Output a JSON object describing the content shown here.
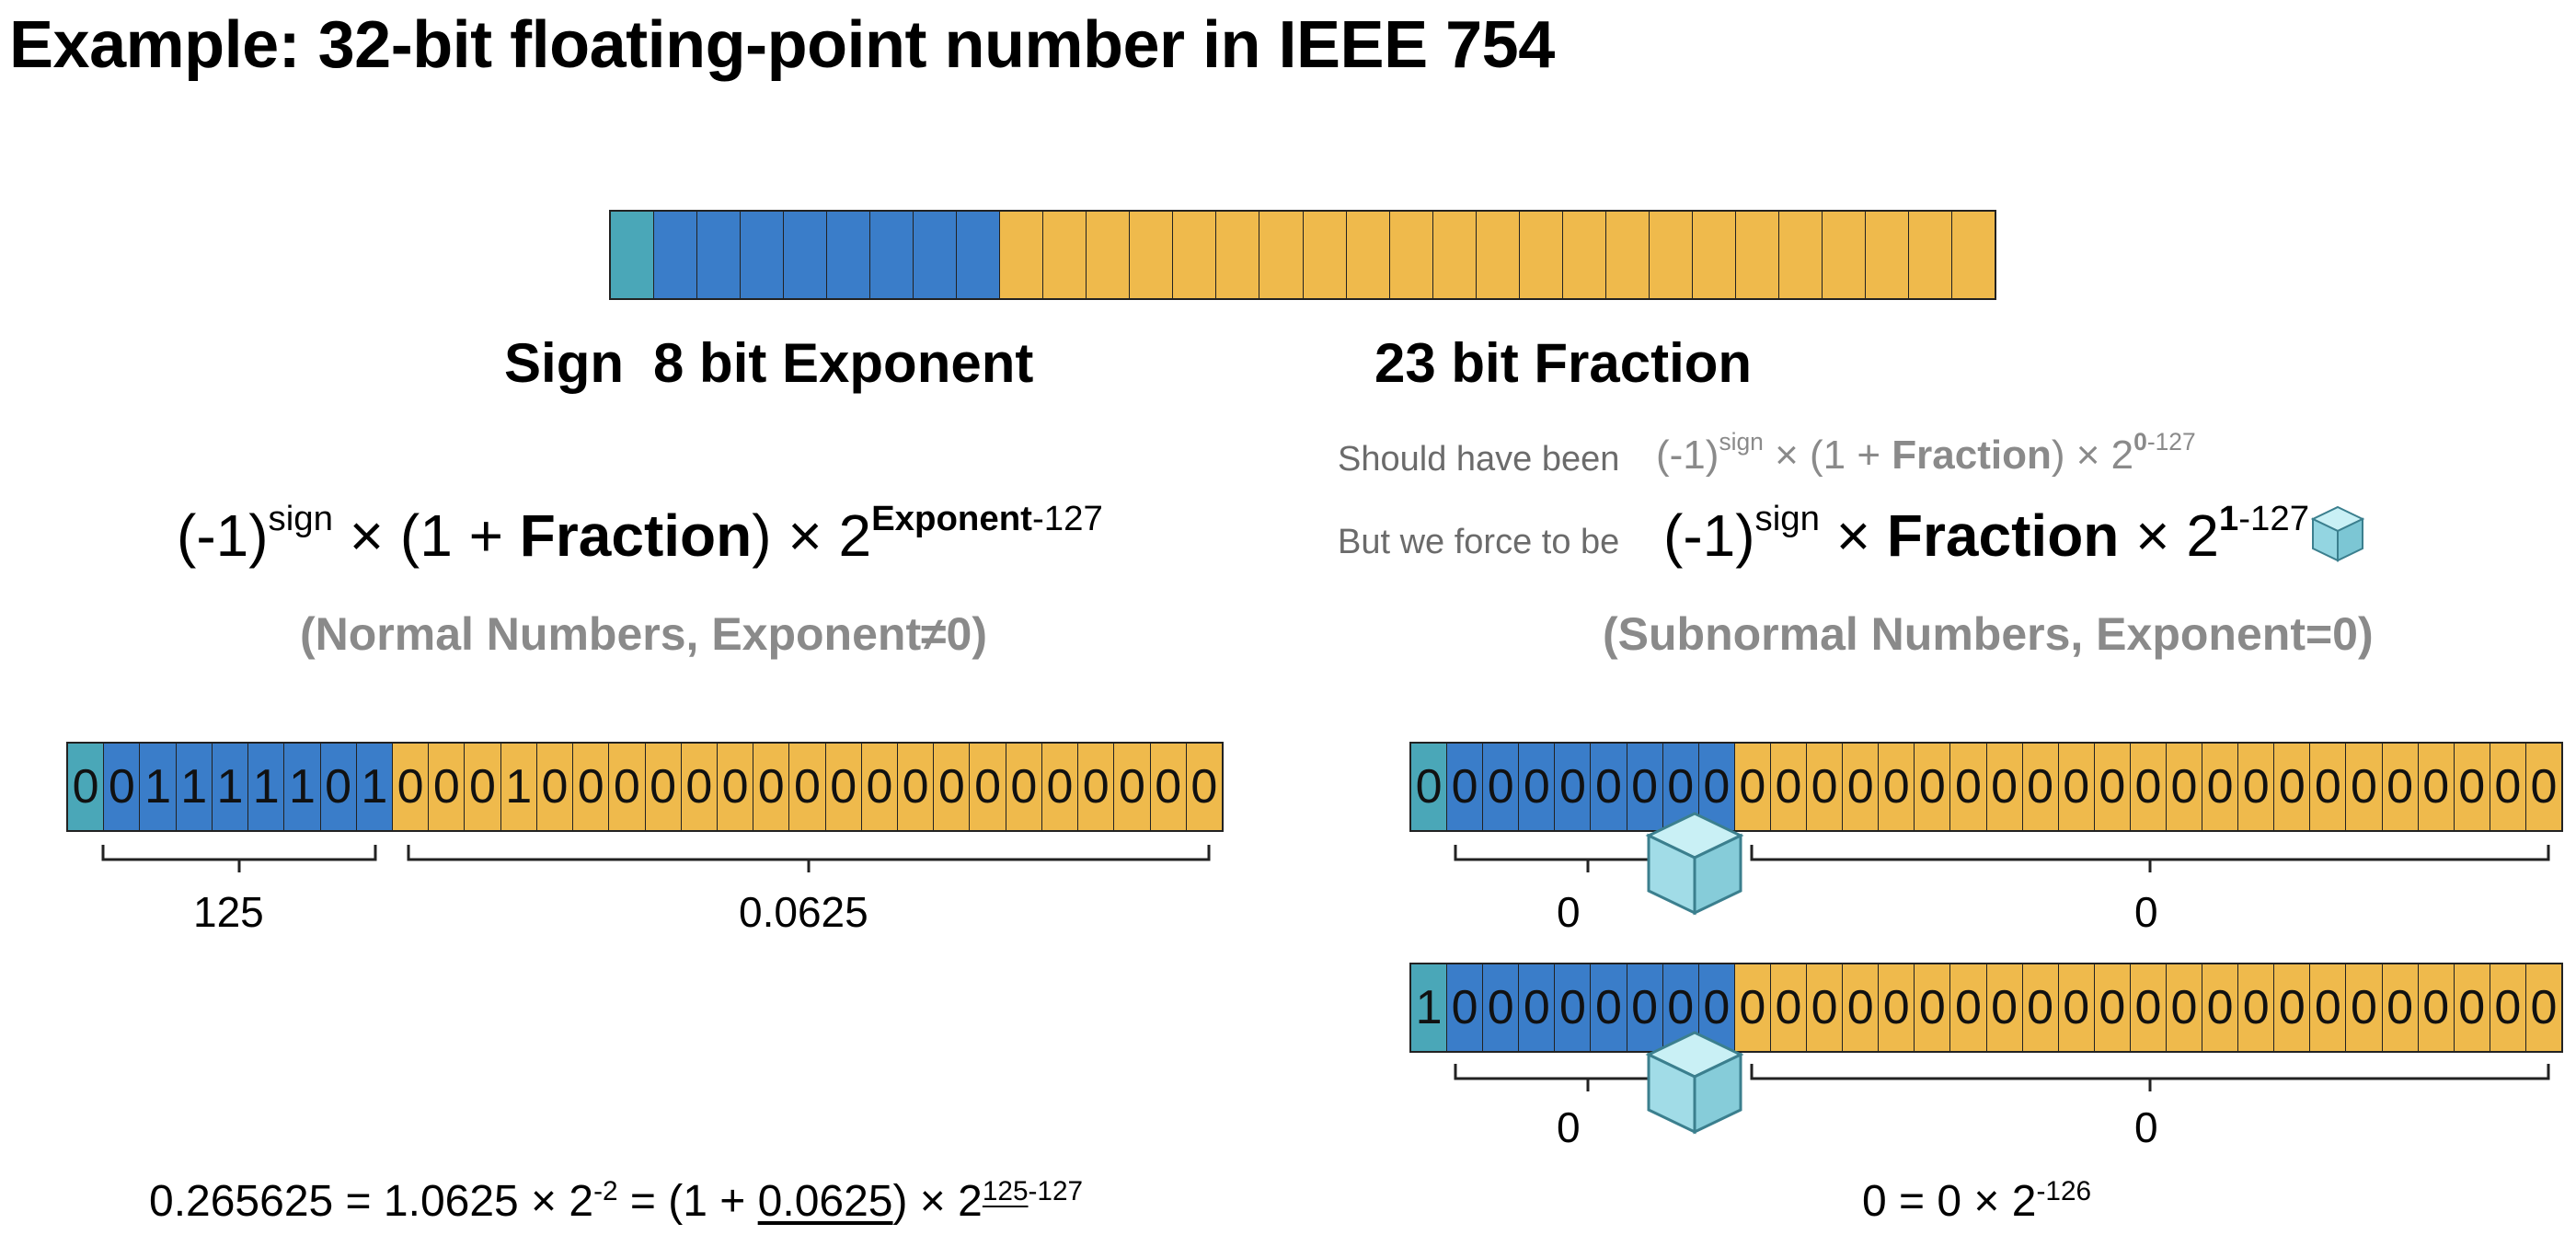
{
  "title": "Example: 32-bit floating-point number in IEEE 754",
  "labels": {
    "sign": "Sign",
    "exponent": "8 bit Exponent",
    "fraction": "23 bit Fraction"
  },
  "normal": {
    "formula_prefix": "(-1)",
    "formula_sign_sup": "sign",
    "formula_mid": " × (1 + ",
    "formula_fraction": "Fraction",
    "formula_end": ") × 2",
    "formula_exp_bold": "Exponent",
    "formula_exp_rest": "-127",
    "caption": "(Normal Numbers, Exponent≠0)",
    "bits": "00111110100010000000000000000000",
    "exponent_value": "125",
    "fraction_value": "0.0625",
    "equation": {
      "a": "0.265625 = 1.0625 × 2",
      "a_sup": "-2",
      "b": " = (1 + ",
      "b_under": "0.0625",
      "c": ") × 2",
      "c_sup_under": "125",
      "c_sup_rest": "-127"
    }
  },
  "subnormal": {
    "should_label": "Should have been",
    "should_prefix": "(-1)",
    "should_sign_sup": "sign",
    "should_mid": " × (1 + ",
    "should_fraction": "Fraction",
    "should_end": ") × 2",
    "should_exp_bold": "0",
    "should_exp_rest": "-127",
    "force_label": "But we force to be",
    "force_prefix": "(-1)",
    "force_sign_sup": "sign",
    "force_mid": " × ",
    "force_fraction": "Fraction",
    "force_end": " × 2",
    "force_exp_bold": "1",
    "force_exp_rest": "-127",
    "caption": "(Subnormal Numbers, Exponent=0)",
    "row1_bits": "00000000000000000000000000000000",
    "row2_bits": "10000000000000000000000000000000",
    "row1_exponent_value": "0",
    "row1_fraction_value": "0",
    "row2_exponent_value": "0",
    "row2_fraction_value": "0",
    "equation": {
      "a": "0 = 0 × 2",
      "a_sup": "-126"
    }
  },
  "colors": {
    "sign": "#4aa7b8",
    "exponent": "#3a7dc9",
    "fraction": "#efba4c",
    "caption_grey": "#8a8a8a",
    "ice_cube": "#a8e0ea"
  },
  "icons": [
    "ice-cube-icon"
  ]
}
